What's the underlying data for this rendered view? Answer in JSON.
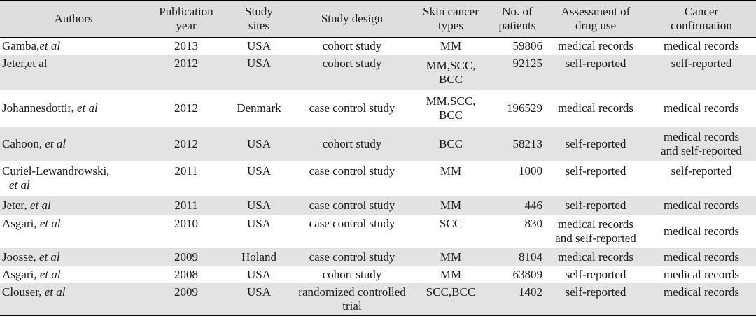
{
  "headers": {
    "authors": "Authors",
    "pub_year_l1": "Publication",
    "pub_year_l2": "year",
    "sites_l1": "Study",
    "sites_l2": "sites",
    "design": "Study design",
    "types_l1": "Skin cancer",
    "types_l2": "types",
    "patients_l1": "No. of",
    "patients_l2": "patients",
    "drug_l1": "Assessment of",
    "drug_l2": "drug use",
    "confirm_l1": "Cancer",
    "confirm_l2": "confirmation"
  },
  "rows": [
    {
      "author": "Gamba,",
      "etal": "et al",
      "year": "2013",
      "sites": "USA",
      "design": "cohort study",
      "types": "MM",
      "patients": "59806",
      "drug": "medical records",
      "confirm": "medical records"
    },
    {
      "author": "Jeter,et al",
      "etal": "",
      "year": "2012",
      "sites": "USA",
      "design": "cohort study",
      "types": "MM,SCC, BCC",
      "patients": "92125",
      "drug": "self-reported",
      "confirm": "self-reported"
    },
    {
      "author": "Johannesdottir, ",
      "etal": "et al",
      "year": "2012",
      "sites": "Denmark",
      "design": "case control study",
      "types": "MM,SCC, BCC",
      "patients": "196529",
      "drug": "medical records",
      "confirm": "medical records"
    },
    {
      "author": "Cahoon, ",
      "etal": "et al",
      "year": "2012",
      "sites": "USA",
      "design": "cohort study",
      "types": "BCC",
      "patients": "58213",
      "drug": "self-reported",
      "confirm": "medical records and self-reported"
    },
    {
      "author": "Curiel-Lewandrowski,",
      "etal": "et al",
      "year": "2011",
      "sites": "USA",
      "design": "case control study",
      "types": "MM",
      "patients": "1000",
      "drug": "self-reported",
      "confirm": "self-reported"
    },
    {
      "author": "Jeter, ",
      "etal": "et al",
      "year": "2011",
      "sites": "USA",
      "design": "case control study",
      "types": "MM",
      "patients": "446",
      "drug": "self-reported",
      "confirm": "medical records"
    },
    {
      "author": "Asgari, ",
      "etal": "et al",
      "year": "2010",
      "sites": "USA",
      "design": "case control study",
      "types": "SCC",
      "patients": "830",
      "drug": "medical records and self-reported",
      "confirm": "medical records"
    },
    {
      "author": "Joosse, ",
      "etal": "et al",
      "year": "2009",
      "sites": "Holand",
      "design": "case control study",
      "types": "MM",
      "patients": "8104",
      "drug": "medical records",
      "confirm": "medical records"
    },
    {
      "author": "Asgari, ",
      "etal": "et al",
      "year": "2008",
      "sites": "USA",
      "design": "cohort study",
      "types": "MM",
      "patients": "63809",
      "drug": "self-reported",
      "confirm": "medical records"
    },
    {
      "author": "Clouser, ",
      "etal": "et al",
      "year": "2009",
      "sites": "USA",
      "design": "randomized controlled trial",
      "types": "SCC,BCC",
      "patients": "1402",
      "drug": "self-reported",
      "confirm": "medical records"
    }
  ]
}
